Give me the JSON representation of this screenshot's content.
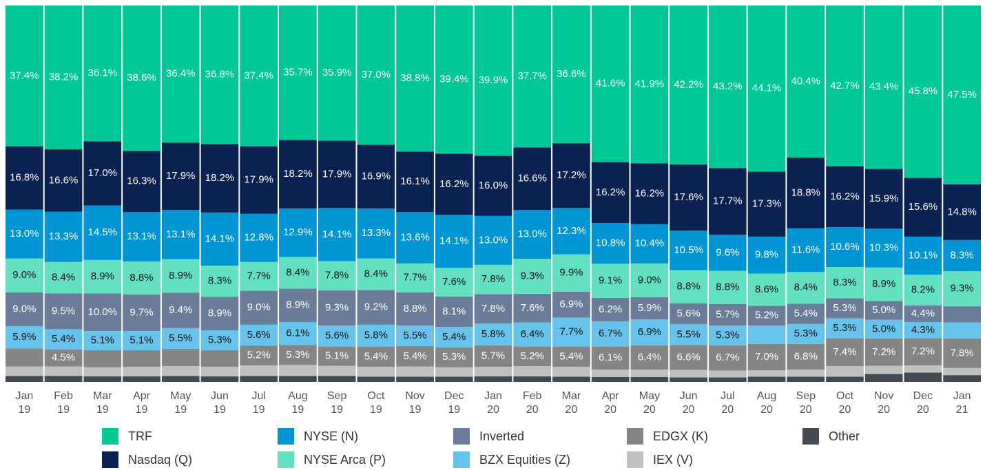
{
  "chart_data": {
    "type": "stacked_bar",
    "ylim": [
      0,
      100
    ],
    "categories": [
      "Jan 19",
      "Feb 19",
      "Mar 19",
      "Apr 19",
      "May 19",
      "Jun 19",
      "Jul 19",
      "Aug 19",
      "Sep 19",
      "Oct 19",
      "Nov 19",
      "Dec 19",
      "Jan 20",
      "Feb 20",
      "Mar 20",
      "Apr 20",
      "May 20",
      "Jun 20",
      "Jul 20",
      "Aug 20",
      "Sep 20",
      "Oct 20",
      "Nov 20",
      "Dec 20",
      "Jan 21"
    ],
    "series": [
      {
        "name": "TRF",
        "color": "#00c896",
        "values": [
          37.4,
          38.2,
          36.1,
          38.6,
          36.4,
          36.8,
          37.4,
          35.7,
          35.9,
          37.0,
          38.8,
          39.4,
          39.9,
          37.7,
          36.6,
          41.6,
          41.9,
          42.2,
          43.2,
          44.1,
          40.4,
          42.7,
          43.4,
          45.8,
          47.5
        ],
        "value_labels": [
          "37.4%",
          "38.2%",
          "36.1%",
          "38.6%",
          "36.4%",
          "36.8%",
          "37.4%",
          "35.7%",
          "35.9%",
          "37.0%",
          "38.8%",
          "39.4%",
          "39.9%",
          "37.7%",
          "36.6%",
          "41.6%",
          "41.9%",
          "42.2%",
          "43.2%",
          "44.1%",
          "40.4%",
          "42.7%",
          "43.4%",
          "45.8%",
          "47.5%"
        ]
      },
      {
        "name": "Nasdaq (Q)",
        "color": "#0a2151",
        "values": [
          16.8,
          16.6,
          17.0,
          16.3,
          17.9,
          18.2,
          17.9,
          18.2,
          17.9,
          16.9,
          16.1,
          16.2,
          16.0,
          16.6,
          17.2,
          16.2,
          16.2,
          17.6,
          17.7,
          17.3,
          18.8,
          16.2,
          15.9,
          15.6,
          14.8
        ],
        "value_labels": [
          "16.8%",
          "16.6%",
          "17.0%",
          "16.3%",
          "17.9%",
          "18.2%",
          "17.9%",
          "18.2%",
          "17.9%",
          "16.9%",
          "16.1%",
          "16.2%",
          "16.0%",
          "16.6%",
          "17.2%",
          "16.2%",
          "16.2%",
          "17.6%",
          "17.7%",
          "17.3%",
          "18.8%",
          "16.2%",
          "15.9%",
          "15.6%",
          "14.8%"
        ]
      },
      {
        "name": "NYSE (N)",
        "color": "#0096d6",
        "values": [
          13.0,
          13.3,
          14.5,
          13.1,
          13.1,
          14.1,
          12.8,
          12.9,
          14.1,
          13.3,
          13.6,
          14.1,
          13.0,
          13.0,
          12.3,
          10.8,
          10.4,
          10.5,
          9.6,
          9.8,
          11.6,
          10.6,
          10.3,
          10.1,
          8.3
        ],
        "value_labels": [
          "13.0%",
          "13.3%",
          "14.5%",
          "13.1%",
          "13.1%",
          "14.1%",
          "12.8%",
          "12.9%",
          "14.1%",
          "13.3%",
          "13.6%",
          "14.1%",
          "13.0%",
          "13.0%",
          "12.3%",
          "10.8%",
          "10.4%",
          "10.5%",
          "9.6%",
          "9.8%",
          "11.6%",
          "10.6%",
          "10.3%",
          "10.1%",
          "8.3%"
        ]
      },
      {
        "name": "NYSE Arca (P)",
        "color": "#62e0c0",
        "values": [
          9.0,
          8.4,
          8.9,
          8.8,
          8.9,
          8.3,
          7.7,
          8.4,
          7.8,
          8.4,
          7.7,
          7.6,
          7.8,
          9.3,
          9.9,
          9.1,
          9.0,
          8.8,
          8.8,
          8.6,
          8.4,
          8.3,
          8.9,
          8.2,
          9.3
        ],
        "value_labels": [
          "9.0%",
          "8.4%",
          "8.9%",
          "8.8%",
          "8.9%",
          "8.3%",
          "7.7%",
          "8.4%",
          "7.8%",
          "8.4%",
          "7.7%",
          "7.6%",
          "7.8%",
          "9.3%",
          "9.9%",
          "9.1%",
          "9.0%",
          "8.8%",
          "8.8%",
          "8.6%",
          "8.4%",
          "8.3%",
          "8.9%",
          "8.2%",
          "9.3%"
        ]
      },
      {
        "name": "Inverted",
        "color": "#6b7c99",
        "values": [
          9.0,
          9.5,
          10.0,
          9.7,
          9.4,
          8.9,
          9.0,
          8.9,
          9.3,
          9.2,
          8.8,
          8.1,
          7.8,
          7.6,
          6.9,
          6.2,
          5.9,
          5.6,
          5.7,
          5.2,
          5.4,
          5.3,
          5.0,
          4.4,
          4.3
        ],
        "value_labels": [
          "9.0%",
          "9.5%",
          "10.0%",
          "9.7%",
          "9.4%",
          "8.9%",
          "9.0%",
          "8.9%",
          "9.3%",
          "9.2%",
          "8.8%",
          "8.1%",
          "7.8%",
          "7.6%",
          "6.9%",
          "6.2%",
          "5.9%",
          "5.6%",
          "5.7%",
          "5.2%",
          "5.4%",
          "5.3%",
          "5.0%",
          "4.4%",
          null
        ]
      },
      {
        "name": "BZX Equities (Z)",
        "color": "#66c4ec",
        "values": [
          5.9,
          5.4,
          5.1,
          5.1,
          5.5,
          5.3,
          5.6,
          6.1,
          5.6,
          5.8,
          5.5,
          5.4,
          5.8,
          6.4,
          7.7,
          6.7,
          6.9,
          5.5,
          5.3,
          4.9,
          5.3,
          5.3,
          5.0,
          4.3,
          4.3
        ],
        "value_labels": [
          "5.9%",
          "5.4%",
          "5.1%",
          "5.1%",
          "5.5%",
          "5.3%",
          "5.6%",
          "6.1%",
          "5.6%",
          "5.8%",
          "5.5%",
          "5.4%",
          "5.8%",
          "6.4%",
          "7.7%",
          "6.7%",
          "6.9%",
          "5.5%",
          "5.3%",
          null,
          "5.3%",
          "5.3%",
          "5.0%",
          "4.3%",
          null
        ]
      },
      {
        "name": "EDGX (K)",
        "color": "#858585",
        "values": [
          4.8,
          4.5,
          4.5,
          4.4,
          4.6,
          4.4,
          5.2,
          5.3,
          5.1,
          5.4,
          5.4,
          5.3,
          5.7,
          5.2,
          5.4,
          6.1,
          6.4,
          6.6,
          6.7,
          7.0,
          6.8,
          7.4,
          7.2,
          7.2,
          7.8
        ],
        "value_labels": [
          null,
          "4.5%",
          null,
          null,
          null,
          null,
          "5.2%",
          "5.3%",
          "5.1%",
          "5.4%",
          "5.4%",
          "5.3%",
          "5.7%",
          "5.2%",
          "5.4%",
          "6.1%",
          "6.4%",
          "6.6%",
          "6.7%",
          "7.0%",
          "6.8%",
          "7.4%",
          "7.2%",
          "7.2%",
          "7.8%"
        ]
      },
      {
        "name": "IEX (V)",
        "color": "#c0c0c0",
        "values": [
          2.5,
          2.5,
          2.4,
          2.5,
          2.6,
          2.5,
          2.8,
          2.9,
          2.7,
          2.6,
          2.7,
          2.5,
          2.5,
          2.7,
          2.6,
          2.0,
          2.0,
          2.0,
          1.8,
          1.7,
          1.9,
          2.8,
          2.2,
          1.9,
          1.9
        ]
      },
      {
        "name": "Other",
        "color": "#444a52",
        "values": [
          1.6,
          1.6,
          1.5,
          1.5,
          1.6,
          1.5,
          1.6,
          1.6,
          1.6,
          1.4,
          1.4,
          1.4,
          1.5,
          1.5,
          1.4,
          1.3,
          1.3,
          1.2,
          1.2,
          1.4,
          1.4,
          1.4,
          2.1,
          2.5,
          1.8
        ]
      }
    ]
  }
}
